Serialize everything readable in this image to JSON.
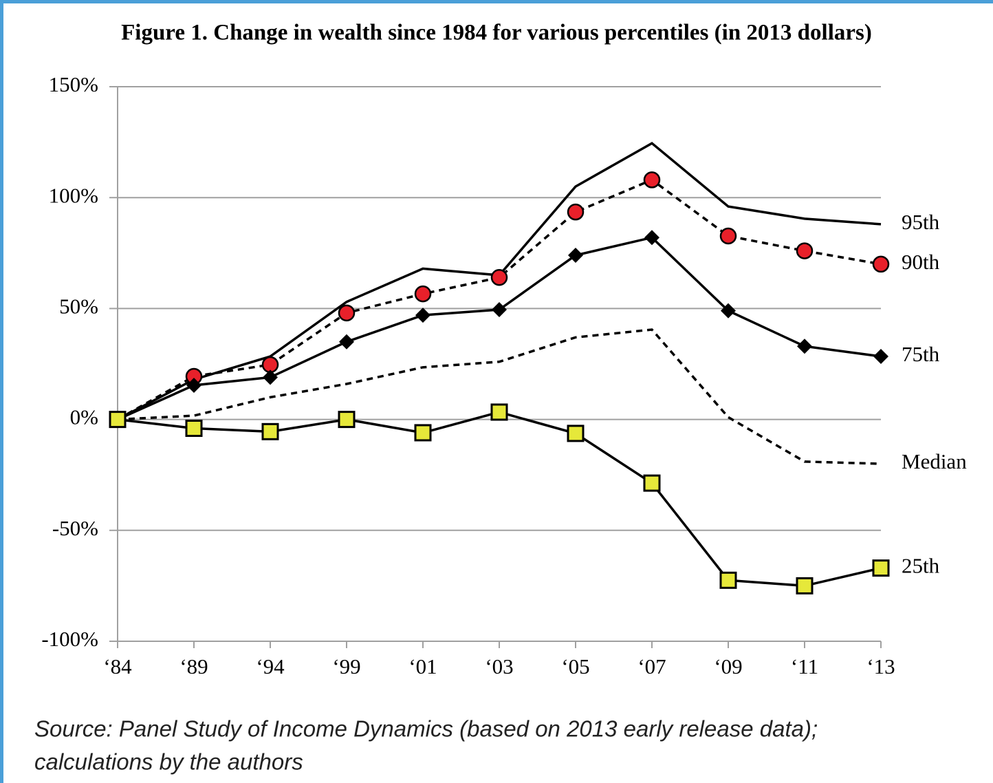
{
  "chart_data": {
    "type": "line",
    "title": "Figure 1.  Change in wealth since 1984 for various percentiles (in 2013 dollars)",
    "categories": [
      "‘84",
      "‘89",
      "‘94",
      "‘99",
      "‘01",
      "‘03",
      "‘05",
      "‘07",
      "‘09",
      "‘11",
      "‘13"
    ],
    "series": [
      {
        "name": "95th",
        "color": "#000000",
        "dash": false,
        "marker": "none",
        "values": [
          0,
          18,
          28.4,
          53,
          68,
          65,
          105,
          124.5,
          96,
          90.5,
          88
        ]
      },
      {
        "name": "90th",
        "color": "#000000",
        "dash": true,
        "marker": "circle",
        "marker_fill": "#e8202a",
        "values": [
          0,
          19.4,
          24.7,
          48,
          56.6,
          64,
          93.5,
          108,
          82.7,
          76,
          70
        ]
      },
      {
        "name": "75th",
        "color": "#000000",
        "dash": false,
        "marker": "diamond",
        "marker_fill": "#000000",
        "values": [
          0,
          15.4,
          19,
          35,
          47,
          49.5,
          74,
          82,
          49,
          33,
          28.4
        ]
      },
      {
        "name": "Median",
        "color": "#000000",
        "dash": true,
        "marker": "none",
        "values": [
          0,
          1.7,
          10,
          16,
          23.5,
          26,
          37,
          40.5,
          1,
          -19,
          -20
        ]
      },
      {
        "name": "25th",
        "color": "#000000",
        "dash": false,
        "marker": "square",
        "marker_fill": "#e6e83a",
        "values": [
          0,
          -4,
          -5.5,
          0,
          -6,
          3.3,
          -6.3,
          -28.7,
          -72.5,
          -75,
          -67
        ]
      }
    ],
    "ylim": [
      -100,
      150
    ],
    "yticks": [
      {
        "value": -100,
        "label": "-100%"
      },
      {
        "value": -50,
        "label": "-50%"
      },
      {
        "value": 0,
        "label": "0%"
      },
      {
        "value": 50,
        "label": "50%"
      },
      {
        "value": 100,
        "label": "100%"
      },
      {
        "value": 150,
        "label": "150%"
      }
    ],
    "grid": true,
    "source": [
      "Source:  Panel Study of Income Dynamics (based on 2013 early release data);",
      "calculations by the authors"
    ]
  }
}
